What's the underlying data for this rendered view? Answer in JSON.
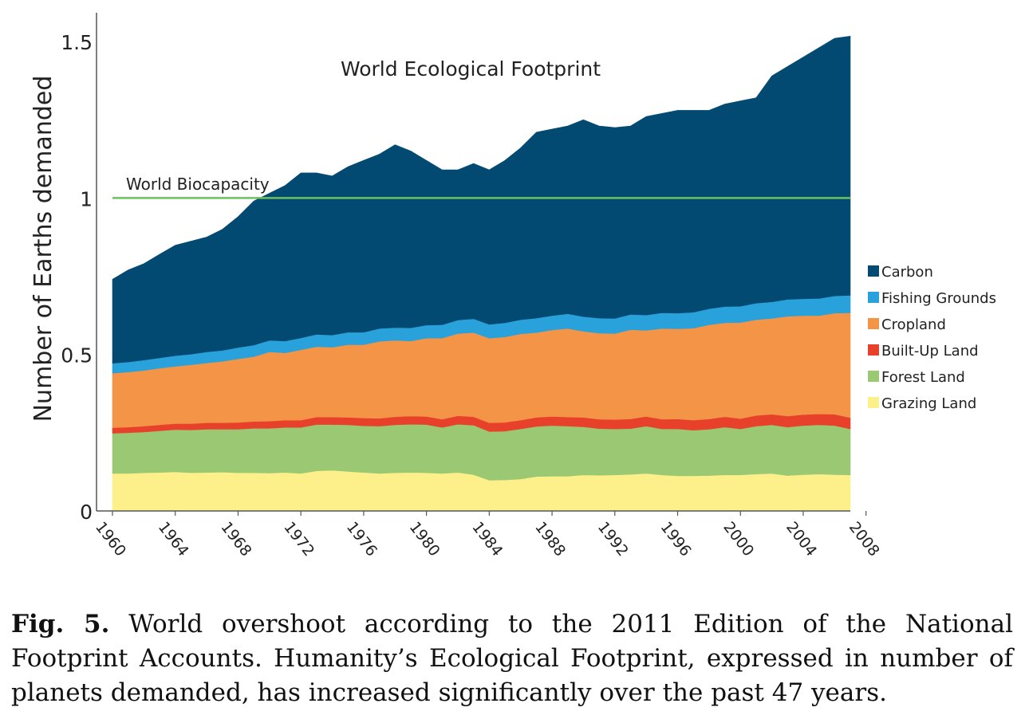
{
  "chart_data": {
    "type": "area",
    "title": "World Ecological Footprint",
    "xlabel": "",
    "ylabel": "Number of Earths demanded",
    "xlim": [
      1961,
      2008
    ],
    "ylim": [
      0,
      1.5
    ],
    "x_tick_labels": [
      "1960",
      "1964",
      "1968",
      "1972",
      "1976",
      "1980",
      "1984",
      "1988",
      "1992",
      "1996",
      "2000",
      "2004",
      "2008"
    ],
    "y_tick_labels": [
      "0",
      "0.5",
      "1",
      "1.5"
    ],
    "y_ticks": [
      0,
      0.5,
      1,
      1.5
    ],
    "x": [
      1961,
      1962,
      1963,
      1964,
      1965,
      1966,
      1967,
      1968,
      1969,
      1970,
      1971,
      1972,
      1973,
      1974,
      1975,
      1976,
      1977,
      1978,
      1979,
      1980,
      1981,
      1982,
      1983,
      1984,
      1985,
      1986,
      1987,
      1988,
      1989,
      1990,
      1991,
      1992,
      1993,
      1994,
      1995,
      1996,
      1997,
      1998,
      1999,
      2000,
      2001,
      2002,
      2003,
      2004,
      2005,
      2006,
      2007,
      2008
    ],
    "series": [
      {
        "name": "Grazing Land",
        "color": "#fdf08a",
        "values": [
          0.12,
          0.12,
          0.122,
          0.123,
          0.125,
          0.122,
          0.123,
          0.124,
          0.122,
          0.122,
          0.121,
          0.123,
          0.12,
          0.128,
          0.13,
          0.126,
          0.123,
          0.12,
          0.122,
          0.123,
          0.122,
          0.12,
          0.123,
          0.116,
          0.098,
          0.099,
          0.102,
          0.11,
          0.111,
          0.111,
          0.115,
          0.114,
          0.115,
          0.117,
          0.12,
          0.115,
          0.112,
          0.112,
          0.113,
          0.115,
          0.115,
          0.118,
          0.12,
          0.113,
          0.116,
          0.118,
          0.116,
          0.115
        ]
      },
      {
        "name": "Forest Land",
        "color": "#9bc872",
        "values": [
          0.128,
          0.13,
          0.13,
          0.133,
          0.135,
          0.137,
          0.138,
          0.137,
          0.139,
          0.142,
          0.143,
          0.144,
          0.147,
          0.148,
          0.146,
          0.149,
          0.149,
          0.151,
          0.153,
          0.154,
          0.154,
          0.147,
          0.154,
          0.158,
          0.156,
          0.156,
          0.16,
          0.16,
          0.162,
          0.16,
          0.154,
          0.149,
          0.147,
          0.146,
          0.151,
          0.147,
          0.15,
          0.146,
          0.148,
          0.153,
          0.147,
          0.153,
          0.155,
          0.155,
          0.157,
          0.157,
          0.157,
          0.147
        ]
      },
      {
        "name": "Built-Up Land",
        "color": "#e8412b",
        "values": [
          0.018,
          0.018,
          0.019,
          0.019,
          0.019,
          0.02,
          0.021,
          0.021,
          0.022,
          0.022,
          0.023,
          0.023,
          0.023,
          0.024,
          0.024,
          0.024,
          0.025,
          0.025,
          0.026,
          0.026,
          0.026,
          0.026,
          0.027,
          0.027,
          0.028,
          0.028,
          0.028,
          0.029,
          0.029,
          0.029,
          0.03,
          0.03,
          0.03,
          0.031,
          0.031,
          0.031,
          0.032,
          0.032,
          0.033,
          0.033,
          0.033,
          0.034,
          0.034,
          0.035,
          0.035,
          0.035,
          0.036,
          0.036
        ]
      },
      {
        "name": "Cropland",
        "color": "#f39447",
        "values": [
          0.174,
          0.176,
          0.178,
          0.181,
          0.183,
          0.188,
          0.191,
          0.196,
          0.203,
          0.207,
          0.221,
          0.215,
          0.225,
          0.225,
          0.223,
          0.232,
          0.234,
          0.246,
          0.244,
          0.24,
          0.25,
          0.259,
          0.263,
          0.269,
          0.27,
          0.273,
          0.276,
          0.271,
          0.276,
          0.283,
          0.275,
          0.275,
          0.275,
          0.285,
          0.275,
          0.29,
          0.288,
          0.294,
          0.301,
          0.3,
          0.307,
          0.306,
          0.306,
          0.319,
          0.316,
          0.314,
          0.323,
          0.335
        ]
      },
      {
        "name": "Fishing Grounds",
        "color": "#29a1db",
        "values": [
          0.032,
          0.032,
          0.033,
          0.033,
          0.034,
          0.034,
          0.035,
          0.035,
          0.036,
          0.037,
          0.037,
          0.038,
          0.038,
          0.039,
          0.039,
          0.04,
          0.04,
          0.041,
          0.041,
          0.042,
          0.042,
          0.043,
          0.043,
          0.044,
          0.044,
          0.045,
          0.045,
          0.046,
          0.046,
          0.047,
          0.047,
          0.048,
          0.048,
          0.049,
          0.049,
          0.05,
          0.05,
          0.051,
          0.051,
          0.052,
          0.052,
          0.053,
          0.053,
          0.054,
          0.054,
          0.055,
          0.055,
          0.056
        ]
      },
      {
        "name": "Carbon",
        "color": "#034a72",
        "values": [
          0.268,
          0.294,
          0.308,
          0.331,
          0.353,
          0.361,
          0.367,
          0.387,
          0.418,
          0.46,
          0.47,
          0.497,
          0.527,
          0.516,
          0.508,
          0.529,
          0.549,
          0.557,
          0.584,
          0.565,
          0.526,
          0.495,
          0.48,
          0.496,
          0.494,
          0.519,
          0.549,
          0.594,
          0.596,
          0.6,
          0.629,
          0.614,
          0.61,
          0.602,
          0.634,
          0.637,
          0.648,
          0.645,
          0.634,
          0.647,
          0.656,
          0.656,
          0.722,
          0.744,
          0.772,
          0.801,
          0.823,
          0.828
        ]
      }
    ],
    "reference_line": {
      "label": "World Biocapacity",
      "value": 1.0,
      "color": "#6cc05f"
    },
    "legend_position": "right"
  },
  "caption": {
    "label": "Fig. 5.",
    "text": "World overshoot according to the 2011 Edition of the National Footprint Accounts. Humanity’s Ecological Footprint, expressed in number of planets demanded, has increased significantly over the past 47 years."
  }
}
